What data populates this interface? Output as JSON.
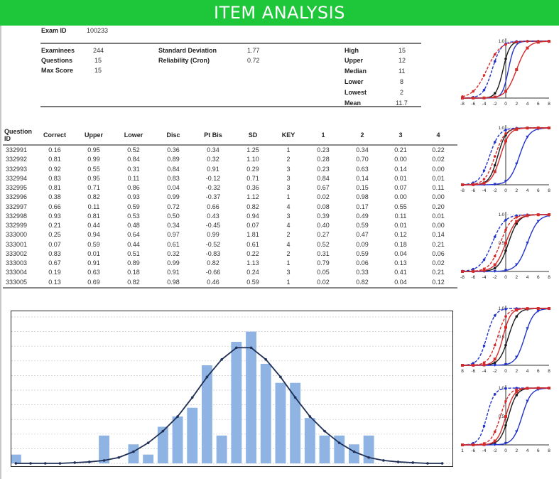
{
  "header": {
    "title": "ITEM ANALYSIS"
  },
  "summary": {
    "exam_id_label": "Exam ID",
    "exam_id": "100233",
    "left": [
      {
        "label": "Examinees",
        "value": "244"
      },
      {
        "label": "Questions",
        "value": "15"
      },
      {
        "label": "Max Score",
        "value": "15"
      }
    ],
    "middle": [
      {
        "label": "Standard Deviation",
        "value": "1.77"
      },
      {
        "label": "Reliability (Cron)",
        "value": "0.72"
      }
    ],
    "right": [
      {
        "label": "High",
        "value": "15"
      },
      {
        "label": "Upper",
        "value": "12"
      },
      {
        "label": "Median",
        "value": "11"
      },
      {
        "label": "Lower",
        "value": "8"
      },
      {
        "label": "Lowest",
        "value": "2"
      },
      {
        "label": "Mean",
        "value": "11.7"
      }
    ]
  },
  "table": {
    "headers": [
      "Question ID",
      "Correct",
      "Upper",
      "Lower",
      "Disc",
      "Pt Bis",
      "SD",
      "KEY",
      "1",
      "2",
      "3",
      "4"
    ],
    "rows": [
      [
        "332991",
        "0.16",
        "0.95",
        "0.52",
        "0.36",
        "0.34",
        "1.25",
        "1",
        "0.23",
        "0.34",
        "0.21",
        "0.22"
      ],
      [
        "332992",
        "0.81",
        "0.99",
        "0.84",
        "0.89",
        "0.32",
        "1.10",
        "2",
        "0.28",
        "0.70",
        "0.00",
        "0.02"
      ],
      [
        "332993",
        "0.92",
        "0.55",
        "0.31",
        "0.84",
        "0.91",
        "0.29",
        "3",
        "0.23",
        "0.63",
        "0.14",
        "0.00"
      ],
      [
        "332994",
        "0.83",
        "0.95",
        "0.11",
        "0.83",
        "-0.12",
        "0.71",
        "3",
        "0.84",
        "0.14",
        "0.01",
        "0.01"
      ],
      [
        "332995",
        "0.81",
        "0.71",
        "0.86",
        "0.04",
        "-0.32",
        "0.36",
        "3",
        "0.67",
        "0.15",
        "0.07",
        "0.11"
      ],
      [
        "332996",
        "0.38",
        "0.82",
        "0.93",
        "0.99",
        "-0.37",
        "1.12",
        "1",
        "0.02",
        "0.98",
        "0.00",
        "0.00"
      ],
      [
        "332997",
        "0.66",
        "0.11",
        "0.59",
        "0.72",
        "0.66",
        "0.82",
        "4",
        "0.08",
        "0.17",
        "0.55",
        "0.20"
      ],
      [
        "332998",
        "0.93",
        "0.81",
        "0.53",
        "0.50",
        "0.43",
        "0.94",
        "3",
        "0.39",
        "0.49",
        "0.11",
        "0.01"
      ],
      [
        "332999",
        "0.21",
        "0.44",
        "0.48",
        "0.34",
        "-0.45",
        "0.07",
        "4",
        "0.40",
        "0.59",
        "0.01",
        "0.00"
      ],
      [
        "333000",
        "0.25",
        "0.94",
        "0.64",
        "0.97",
        "0.99",
        "1.81",
        "2",
        "0.27",
        "0.47",
        "0.12",
        "0.14"
      ],
      [
        "333001",
        "0.07",
        "0.59",
        "0.44",
        "0.61",
        "-0.52",
        "0.61",
        "4",
        "0.52",
        "0.09",
        "0.18",
        "0.21"
      ],
      [
        "333002",
        "0.83",
        "0.01",
        "0.51",
        "0.32",
        "-0.83",
        "0.22",
        "2",
        "0.31",
        "0.59",
        "0.04",
        "0.06"
      ],
      [
        "333003",
        "0.67",
        "0.91",
        "0.89",
        "0.99",
        "0.82",
        "1.13",
        "1",
        "0.79",
        "0.06",
        "0.13",
        "0.02"
      ],
      [
        "333004",
        "0.19",
        "0.63",
        "0.18",
        "0.91",
        "-0.66",
        "0.24",
        "3",
        "0.05",
        "0.33",
        "0.41",
        "0.21"
      ],
      [
        "333005",
        "0.13",
        "0.69",
        "0.82",
        "0.98",
        "0.46",
        "0.59",
        "1",
        "0.02",
        "0.82",
        "0.04",
        "0.12"
      ]
    ]
  },
  "chart_data": [
    {
      "type": "bar",
      "x": [
        0,
        1,
        2,
        3,
        4,
        5,
        6,
        7,
        8,
        9,
        10,
        11,
        12,
        13,
        14,
        15,
        16,
        17,
        18,
        19,
        20,
        21,
        22,
        23,
        24,
        25,
        26,
        27,
        28,
        29
      ],
      "values": [
        6,
        0,
        0,
        0,
        0,
        0,
        19,
        0,
        13,
        6,
        25,
        32,
        38,
        67,
        19,
        83,
        90,
        68,
        55,
        55,
        31,
        19,
        19,
        13,
        19,
        0,
        0,
        0,
        0,
        0
      ],
      "overlay_normal": [
        0,
        0,
        0,
        0,
        0.5,
        1,
        2,
        4,
        8,
        14,
        22,
        32,
        45,
        59,
        71,
        79,
        79,
        71,
        59,
        45,
        32,
        22,
        14,
        8,
        4,
        2,
        1,
        0.5,
        0,
        0
      ],
      "ylim": [
        0,
        100
      ],
      "grid": true,
      "colors": {
        "bar": "#8fb4e3",
        "curve": "#1f2f55"
      }
    },
    {
      "type": "line",
      "xticks": [
        "-8",
        "-6",
        "-4",
        "-2",
        "0",
        "2",
        "4",
        "6",
        "8"
      ],
      "yticks": [
        "1.0"
      ],
      "xlim": [
        -8,
        8
      ],
      "ylim": [
        0,
        1
      ],
      "series": [
        {
          "color": "#1a1a1a",
          "style": "solid",
          "center": -0.5,
          "slope": 1.6,
          "markers": "dot"
        },
        {
          "color": "#2233cc",
          "style": "solid",
          "center": 0.5,
          "slope": 1.8,
          "markers": "none"
        },
        {
          "color": "#2233cc",
          "style": "dash",
          "center": -2.5,
          "slope": 1.2,
          "markers": "dot"
        },
        {
          "color": "#d42a2a",
          "style": "solid",
          "center": 2.0,
          "slope": 1.0,
          "markers": "square"
        },
        {
          "color": "#d42a2a",
          "style": "dash",
          "center": -3.5,
          "slope": 0.8,
          "markers": "dot"
        }
      ]
    },
    {
      "type": "line",
      "xticks": [
        "-8",
        "-6",
        "-4",
        "-2",
        "0",
        "2",
        "4",
        "6",
        "8"
      ],
      "yticks": [
        "1.0"
      ],
      "xlim": [
        -8,
        8
      ],
      "ylim": [
        0,
        1
      ],
      "series": [
        {
          "color": "#1a1a1a",
          "style": "solid",
          "center": -1.5,
          "slope": 1.3,
          "markers": "dot"
        },
        {
          "color": "#2233cc",
          "style": "solid",
          "center": 2.5,
          "slope": 1.1,
          "markers": "triangle"
        },
        {
          "color": "#2233cc",
          "style": "dash",
          "center": -3.0,
          "slope": 1.1,
          "markers": "dot"
        },
        {
          "color": "#d42a2a",
          "style": "solid",
          "center": -1.0,
          "slope": 1.2,
          "markers": "square"
        },
        {
          "color": "#d42a2a",
          "style": "dash",
          "center": -2.0,
          "slope": 1.1,
          "markers": "dot"
        }
      ]
    },
    {
      "type": "line",
      "xticks": [
        "-8",
        "-6",
        "-4",
        "-2",
        "0",
        "2",
        "4",
        "6",
        "8"
      ],
      "yticks": [
        "1.0",
        "0.5"
      ],
      "xlim": [
        -8,
        8
      ],
      "ylim": [
        0,
        1
      ],
      "series": [
        {
          "color": "#1a1a1a",
          "style": "solid",
          "center": 0.5,
          "slope": 1.1,
          "markers": "dot"
        },
        {
          "color": "#2233cc",
          "style": "solid",
          "center": 4.0,
          "slope": 1.0,
          "markers": "triangle"
        },
        {
          "color": "#2233cc",
          "style": "dash",
          "center": -2.5,
          "slope": 0.9,
          "markers": "dot"
        },
        {
          "color": "#d42a2a",
          "style": "solid",
          "center": 0.0,
          "slope": 1.0,
          "markers": "square"
        },
        {
          "color": "#d42a2a",
          "style": "dash",
          "center": -1.0,
          "slope": 1.0,
          "markers": "dot"
        }
      ]
    },
    {
      "type": "line",
      "xticks": [
        "8",
        "-6",
        "-4",
        "-2",
        "0",
        "2",
        "4",
        "6",
        "8"
      ],
      "yticks": [
        "1.0",
        "0.5"
      ],
      "xlim": [
        -8,
        8
      ],
      "ylim": [
        0,
        1
      ],
      "series": [
        {
          "color": "#1a1a1a",
          "style": "solid",
          "center": 0.5,
          "slope": 1.2,
          "markers": "dot"
        },
        {
          "color": "#2233cc",
          "style": "solid",
          "center": 3.5,
          "slope": 1.2,
          "markers": "triangle"
        },
        {
          "color": "#2233cc",
          "style": "dash",
          "center": -3.5,
          "slope": 1.3,
          "markers": "dot"
        },
        {
          "color": "#d42a2a",
          "style": "solid",
          "center": -0.5,
          "slope": 1.4,
          "markers": "square"
        },
        {
          "color": "#d42a2a",
          "style": "dash",
          "center": -1.5,
          "slope": 1.2,
          "markers": "dot"
        }
      ]
    },
    {
      "type": "line",
      "xticks": [
        "1",
        "-6",
        "-4",
        "-2",
        "0",
        "2",
        "4",
        "6",
        "8"
      ],
      "yticks": [
        "1.0",
        "0.5"
      ],
      "xlim": [
        -8,
        8
      ],
      "ylim": [
        0,
        1
      ],
      "series": [
        {
          "color": "#1a1a1a",
          "style": "solid",
          "center": 0.5,
          "slope": 1.3,
          "markers": "dot"
        },
        {
          "color": "#2233cc",
          "style": "solid",
          "center": 3.0,
          "slope": 1.2,
          "markers": "triangle"
        },
        {
          "color": "#2233cc",
          "style": "dash",
          "center": -3.5,
          "slope": 1.4,
          "markers": "dot"
        },
        {
          "color": "#d42a2a",
          "style": "solid",
          "center": 0.0,
          "slope": 1.3,
          "markers": "square"
        },
        {
          "color": "#d42a2a",
          "style": "dash",
          "center": -1.0,
          "slope": 1.2,
          "markers": "dot"
        }
      ]
    }
  ]
}
